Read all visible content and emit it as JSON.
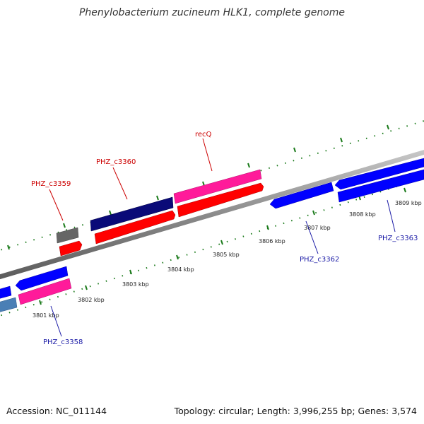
{
  "title": "Phenylobacterium zucineum HLK1, complete genome",
  "footer": {
    "accession": "Accession: NC_011144",
    "summary": "Topology: circular; Length: 3,996,255 bp; Genes: 3,574"
  },
  "kbp_labels": [
    "3801 kbp",
    "3802 kbp",
    "3803 kbp",
    "3804 kbp",
    "3805 kbp",
    "3806 kbp",
    "3807 kbp",
    "3808 kbp",
    "3809 kbp"
  ],
  "gene_labels": {
    "phz_c3359": "PHZ_c3359",
    "phz_c3360": "PHZ_c3360",
    "recq": "recQ",
    "phz_c3358": "PHZ_c3358",
    "phz_c3362": "PHZ_c3362",
    "phz_c3363": "PHZ_c3363"
  },
  "colors": {
    "backbone": "#8a8a8a",
    "tick": "#1a7a1a",
    "red": "#ff0000",
    "pink": "#ff1a9a",
    "navy": "#0a0a78",
    "blue": "#0000ff",
    "steel": "#4a7fb5",
    "gray": "#666666",
    "forward_label": "#cc0000",
    "reverse_label": "#1a1aa6"
  }
}
